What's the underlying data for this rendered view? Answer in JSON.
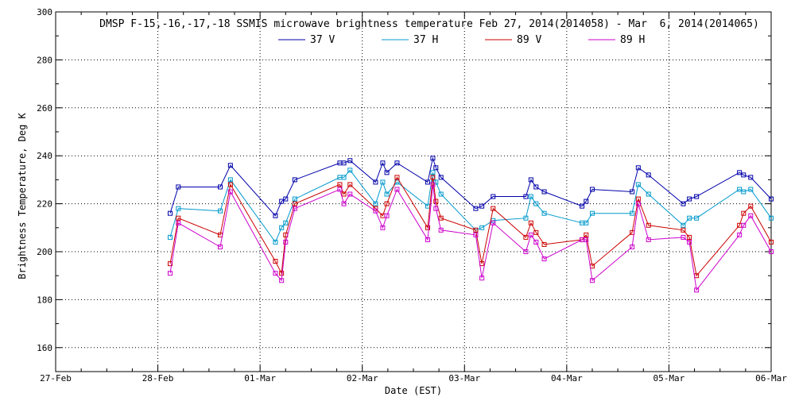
{
  "chart_data": {
    "type": "line",
    "title": "DMSP F-15,-16,-17,-18 SSMIS microwave brightness temperature Feb 27, 2014(2014058) - Mar  6, 2014(2014065)",
    "xlabel": "Date (EST)",
    "ylabel": "Brightness Temperature, Deg K",
    "ylim": [
      150,
      300
    ],
    "yticks": [
      160,
      180,
      200,
      220,
      240,
      260,
      280,
      300
    ],
    "xlim": [
      0,
      7
    ],
    "xticks": [
      {
        "x": 0,
        "label": "27-Feb"
      },
      {
        "x": 1,
        "label": "28-Feb"
      },
      {
        "x": 2,
        "label": "01-Mar"
      },
      {
        "x": 3,
        "label": "02-Mar"
      },
      {
        "x": 4,
        "label": "03-Mar"
      },
      {
        "x": 5,
        "label": "04-Mar"
      },
      {
        "x": 6,
        "label": "05-Mar"
      },
      {
        "x": 7,
        "label": "06-Mar"
      }
    ],
    "grid": true,
    "legend_position": "top-center",
    "series": [
      {
        "name": "37 V",
        "color": "#0000aa",
        "x": [
          1.12,
          1.2,
          1.61,
          1.71,
          2.15,
          2.21,
          2.25,
          2.34,
          2.78,
          2.82,
          2.88,
          3.13,
          3.2,
          3.24,
          3.34,
          3.64,
          3.69,
          3.72,
          3.77,
          4.11,
          4.17,
          4.28,
          4.6,
          4.65,
          4.7,
          4.78,
          5.15,
          5.19,
          5.25,
          5.64,
          5.7,
          5.8,
          6.14,
          6.2,
          6.27,
          6.69,
          6.73,
          6.8,
          7
        ],
        "y": [
          216,
          227,
          227,
          236,
          215,
          221,
          222,
          230,
          237,
          237,
          238,
          229,
          237,
          233,
          237,
          229,
          239,
          235,
          231,
          218,
          219,
          223,
          223,
          230,
          227,
          225,
          219,
          221,
          226,
          225,
          235,
          232,
          220,
          222,
          223,
          233,
          232,
          231,
          222
        ]
      },
      {
        "name": "37 H",
        "color": "#0099cc",
        "x": [
          1.12,
          1.2,
          1.61,
          1.71,
          2.15,
          2.21,
          2.25,
          2.34,
          2.78,
          2.82,
          2.88,
          3.13,
          3.2,
          3.24,
          3.34,
          3.64,
          3.69,
          3.72,
          3.77,
          4.11,
          4.17,
          4.28,
          4.6,
          4.65,
          4.7,
          4.78,
          5.15,
          5.19,
          5.25,
          5.64,
          5.7,
          5.8,
          6.14,
          6.2,
          6.27,
          6.69,
          6.73,
          6.8,
          7
        ],
        "y": [
          206,
          218,
          217,
          230,
          204,
          210,
          212,
          222,
          231,
          231,
          234,
          220,
          229,
          224,
          229,
          219,
          233,
          229,
          224,
          209,
          210,
          213,
          214,
          223,
          220,
          216,
          212,
          212,
          216,
          216,
          228,
          224,
          211,
          214,
          214,
          226,
          225,
          226,
          214
        ]
      },
      {
        "name": "89 V",
        "color": "#cc0000",
        "x": [
          1.12,
          1.2,
          1.61,
          1.71,
          2.15,
          2.21,
          2.25,
          2.34,
          2.78,
          2.82,
          2.88,
          3.13,
          3.2,
          3.24,
          3.34,
          3.64,
          3.69,
          3.72,
          3.77,
          4.11,
          4.17,
          4.28,
          4.6,
          4.65,
          4.7,
          4.78,
          5.15,
          5.19,
          5.25,
          5.64,
          5.7,
          5.8,
          6.14,
          6.2,
          6.27,
          6.69,
          6.73,
          6.8,
          7
        ],
        "y": [
          195,
          214,
          207,
          228,
          196,
          191,
          207,
          220,
          228,
          224,
          228,
          218,
          215,
          220,
          231,
          210,
          231,
          221,
          214,
          209,
          195,
          218,
          206,
          212,
          208,
          203,
          205,
          207,
          194,
          208,
          222,
          211,
          209,
          206,
          190,
          211,
          216,
          219,
          204
        ]
      },
      {
        "name": "89 H",
        "color": "#cc00cc",
        "x": [
          1.12,
          1.2,
          1.61,
          1.71,
          2.15,
          2.21,
          2.25,
          2.34,
          2.78,
          2.82,
          2.88,
          3.13,
          3.2,
          3.24,
          3.34,
          3.64,
          3.69,
          3.72,
          3.77,
          4.11,
          4.17,
          4.28,
          4.6,
          4.65,
          4.7,
          4.78,
          5.15,
          5.19,
          5.25,
          5.64,
          5.7,
          5.8,
          6.14,
          6.2,
          6.27,
          6.69,
          6.73,
          6.8,
          7
        ],
        "y": [
          191,
          212,
          202,
          225,
          191,
          188,
          204,
          218,
          226,
          220,
          224,
          217,
          210,
          215,
          226,
          205,
          228,
          218,
          209,
          207,
          189,
          212,
          200,
          207,
          204,
          197,
          205,
          205,
          188,
          202,
          220,
          205,
          206,
          204,
          184,
          207,
          211,
          215,
          200
        ]
      }
    ]
  }
}
